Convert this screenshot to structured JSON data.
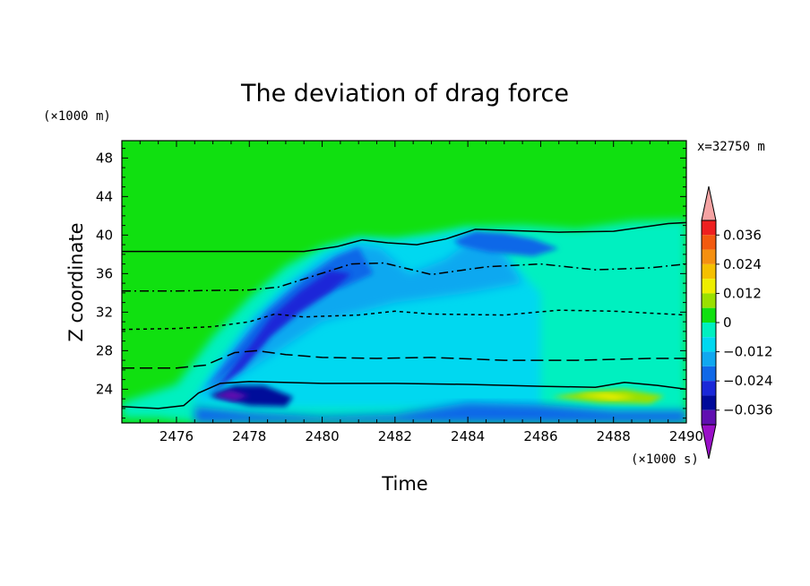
{
  "chart_data": {
    "type": "heatmap",
    "title": "The deviation of drag force",
    "xlabel": "Time",
    "ylabel": "Z coordinate",
    "x_unit": "(×1000 s)",
    "y_unit": "(×1000 m)",
    "annotation": "x=32750 m",
    "xlim": [
      2474.5,
      2490
    ],
    "ylim": [
      20.5,
      49.8
    ],
    "x_ticks": [
      2476,
      2478,
      2480,
      2482,
      2484,
      2486,
      2488,
      2490
    ],
    "y_ticks": [
      24,
      28,
      32,
      36,
      40,
      44,
      48
    ],
    "grid": false,
    "colorbar": {
      "labels": [
        "0.036",
        "0.024",
        "0.012",
        "0",
        "−0.012",
        "−0.024",
        "−0.036"
      ],
      "levels": [
        0.036,
        0.03,
        0.024,
        0.018,
        0.012,
        0.006,
        0,
        -0.006,
        -0.012,
        -0.018,
        -0.024,
        -0.03,
        -0.036
      ],
      "colors": [
        "#f5a3a3",
        "#ee2020",
        "#f25a10",
        "#f59010",
        "#f5c000",
        "#eeee00",
        "#9ae000",
        "#10e010",
        "#00f0c0",
        "#00d8f0",
        "#10a8f0",
        "#1068e8",
        "#1a28d8",
        "#000a9a",
        "#6010b0",
        "#9a10c8"
      ]
    },
    "series": [
      {
        "style": "solid",
        "x": [
          2474.5,
          2475.5,
          2476.2,
          2476.6,
          2477.2,
          2478,
          2480,
          2482,
          2484,
          2486,
          2487.5,
          2488.3,
          2489.2,
          2490
        ],
        "y": [
          22.2,
          22.0,
          22.3,
          23.6,
          24.6,
          24.8,
          24.6,
          24.6,
          24.5,
          24.3,
          24.2,
          24.7,
          24.4,
          24.0
        ]
      },
      {
        "style": "longdash",
        "x": [
          2474.5,
          2476,
          2476.8,
          2477.6,
          2478.2,
          2479,
          2480,
          2481.5,
          2483,
          2485,
          2487,
          2489,
          2490
        ],
        "y": [
          26.2,
          26.2,
          26.5,
          27.8,
          28.0,
          27.6,
          27.3,
          27.2,
          27.3,
          27.0,
          27.0,
          27.2,
          27.2
        ]
      },
      {
        "style": "dash",
        "x": [
          2474.5,
          2476,
          2477,
          2478,
          2478.7,
          2479.5,
          2481,
          2482,
          2483,
          2485,
          2486.5,
          2488,
          2490
        ],
        "y": [
          30.2,
          30.3,
          30.5,
          31.0,
          31.8,
          31.5,
          31.7,
          32.1,
          31.8,
          31.7,
          32.2,
          32.1,
          31.7
        ]
      },
      {
        "style": "dashdot",
        "x": [
          2474.5,
          2476,
          2478,
          2478.8,
          2479.8,
          2480.8,
          2481.7,
          2483,
          2484.5,
          2486,
          2487.5,
          2489,
          2490
        ],
        "y": [
          34.2,
          34.2,
          34.3,
          34.6,
          35.8,
          37.0,
          37.1,
          35.9,
          36.7,
          37.0,
          36.4,
          36.6,
          37.0
        ]
      },
      {
        "style": "solid",
        "x": [
          2474.5,
          2477,
          2479.5,
          2480.4,
          2481.1,
          2481.8,
          2482.6,
          2483.4,
          2484.2,
          2485,
          2486.5,
          2488,
          2489.5,
          2490
        ],
        "y": [
          38.3,
          38.3,
          38.3,
          38.8,
          39.5,
          39.2,
          39.0,
          39.6,
          40.6,
          40.5,
          40.3,
          40.4,
          41.2,
          41.3
        ]
      }
    ]
  }
}
